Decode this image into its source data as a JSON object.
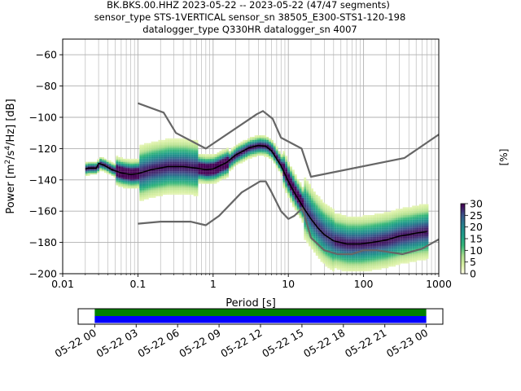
{
  "title_lines": [
    "BK.BKS.00.HHZ   2023-05-22 -- 2023-05-22  (47/47 segments)",
    "sensor_type STS-1VERTICAL sensor_sn 38505_E300-STS1-120-198",
    "datalogger_type Q330HR datalogger_sn 4007"
  ],
  "chart_data": [
    {
      "type": "heatmap",
      "xlabel": "Period [s]",
      "ylabel": "Power [m²/s⁴/Hz] [dB]",
      "xscale": "log",
      "xlim": [
        0.01,
        1000
      ],
      "ylim": [
        -200,
        -50
      ],
      "x_ticks": [
        0.01,
        0.1,
        1,
        10,
        100,
        1000
      ],
      "x_tick_labels": [
        "0.01",
        "0.1",
        "1",
        "10",
        "100",
        "1000"
      ],
      "y_ticks": [
        -200,
        -180,
        -160,
        -140,
        -120,
        -100,
        -80,
        -60
      ],
      "y_tick_labels": [
        "−200",
        "−180",
        "−160",
        "−140",
        "−120",
        "−100",
        "−80",
        "−60"
      ],
      "grid": true,
      "colorbar": {
        "label": "[%]",
        "ticks": [
          0,
          5,
          10,
          15,
          20,
          25,
          30
        ],
        "range": [
          0,
          30
        ]
      },
      "series": [
        {
          "kind": "noise-model-upper",
          "color": "#666666",
          "points": [
            [
              0.1,
              -91
            ],
            [
              0.22,
              -97
            ],
            [
              0.32,
              -110
            ],
            [
              0.8,
              -120
            ],
            [
              3.8,
              -98
            ],
            [
              4.6,
              -96
            ],
            [
              6.2,
              -101
            ],
            [
              8,
              -113
            ],
            [
              15,
              -120
            ],
            [
              20,
              -138
            ],
            [
              350,
              -126
            ],
            [
              1000,
              -111
            ]
          ]
        },
        {
          "kind": "noise-model-lower",
          "color": "#666666",
          "points": [
            [
              0.1,
              -168
            ],
            [
              0.2,
              -166.7
            ],
            [
              0.5,
              -166.7
            ],
            [
              0.8,
              -169
            ],
            [
              1.2,
              -163
            ],
            [
              2.4,
              -148
            ],
            [
              4.2,
              -141
            ],
            [
              5,
              -141
            ],
            [
              6,
              -148
            ],
            [
              8,
              -160
            ],
            [
              10,
              -165
            ],
            [
              12,
              -163
            ],
            [
              15.4,
              -158
            ],
            [
              20,
              -177
            ],
            [
              30,
              -185
            ],
            [
              45,
              -187.5
            ],
            [
              70,
              -187.5
            ],
            [
              100,
              -185
            ],
            [
              150,
              -185
            ],
            [
              330,
              -187.5
            ],
            [
              600,
              -184
            ],
            [
              1000,
              -178
            ]
          ]
        },
        {
          "kind": "mode",
          "color": "#000000",
          "points": [
            [
              0.02,
              -133
            ],
            [
              0.022,
              -132.5
            ],
            [
              0.028,
              -132.5
            ],
            [
              0.03,
              -129.5
            ],
            [
              0.035,
              -130.5
            ],
            [
              0.045,
              -133.5
            ],
            [
              0.06,
              -135.5
            ],
            [
              0.08,
              -136.5
            ],
            [
              0.1,
              -136
            ],
            [
              0.15,
              -133.5
            ],
            [
              0.25,
              -131.5
            ],
            [
              0.4,
              -131.5
            ],
            [
              0.6,
              -132.5
            ],
            [
              0.8,
              -133.5
            ],
            [
              1,
              -133
            ],
            [
              1.5,
              -129
            ],
            [
              2,
              -124
            ],
            [
              3,
              -119.5
            ],
            [
              4,
              -118
            ],
            [
              5,
              -118.5
            ],
            [
              6,
              -121.5
            ],
            [
              8,
              -131
            ],
            [
              10,
              -141
            ],
            [
              12,
              -148
            ],
            [
              16,
              -158
            ],
            [
              20,
              -165
            ],
            [
              25,
              -171
            ],
            [
              30,
              -175
            ],
            [
              40,
              -179
            ],
            [
              60,
              -181
            ],
            [
              90,
              -181
            ],
            [
              130,
              -180
            ],
            [
              200,
              -178.5
            ],
            [
              300,
              -176
            ],
            [
              400,
              -175
            ],
            [
              500,
              -174
            ],
            [
              700,
              -173
            ]
          ]
        }
      ]
    },
    {
      "type": "timeline",
      "x_tick_labels": [
        "05-22 00",
        "05-22 03",
        "05-22 06",
        "05-22 09",
        "05-22 12",
        "05-22 15",
        "05-22 18",
        "05-22 21",
        "05-23 00"
      ],
      "range_hours": [
        -1.2,
        25.2
      ],
      "bars": [
        {
          "row": "upper",
          "color": "#008000",
          "start_hour": 0,
          "end_hour": 24
        },
        {
          "row": "lower",
          "color": "#0000ff",
          "start_hour": 0,
          "end_hour": 24
        }
      ]
    }
  ]
}
